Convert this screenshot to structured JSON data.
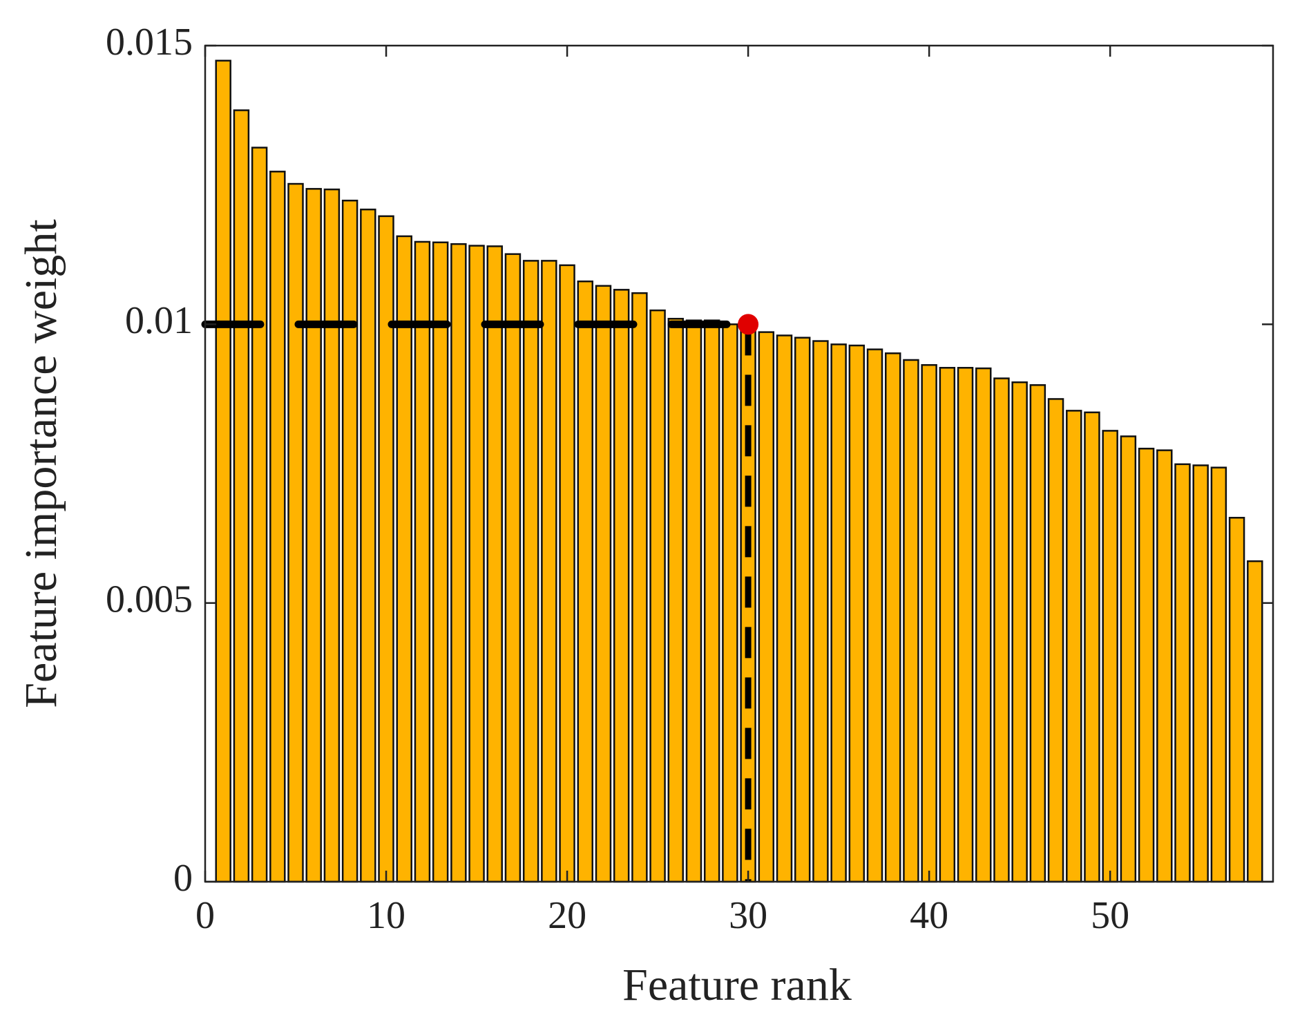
{
  "chart_data": {
    "type": "bar",
    "xlabel": "Feature rank",
    "ylabel": "Feature importance weight",
    "x": [
      1,
      2,
      3,
      4,
      5,
      6,
      7,
      8,
      9,
      10,
      11,
      12,
      13,
      14,
      15,
      16,
      17,
      18,
      19,
      20,
      21,
      22,
      23,
      24,
      25,
      26,
      27,
      28,
      29,
      30,
      31,
      32,
      33,
      34,
      35,
      36,
      37,
      38,
      39,
      40,
      41,
      42,
      43,
      44,
      45,
      46,
      47,
      48,
      49,
      50,
      51,
      52,
      53,
      54,
      55,
      56,
      57,
      58
    ],
    "values": [
      0.01473,
      0.01384,
      0.01317,
      0.01274,
      0.01252,
      0.01243,
      0.01242,
      0.01222,
      0.01206,
      0.01194,
      0.01158,
      0.01148,
      0.01147,
      0.01144,
      0.01141,
      0.0114,
      0.01126,
      0.01114,
      0.01114,
      0.01106,
      0.01077,
      0.01069,
      0.01062,
      0.01056,
      0.01025,
      0.0101,
      0.01007,
      0.01007,
      0.01,
      0.00995,
      0.00986,
      0.0098,
      0.00976,
      0.0097,
      0.00964,
      0.00962,
      0.00955,
      0.00948,
      0.00936,
      0.00927,
      0.00922,
      0.00922,
      0.00921,
      0.00903,
      0.00896,
      0.00891,
      0.00866,
      0.00845,
      0.00842,
      0.00809,
      0.00799,
      0.00777,
      0.00774,
      0.00749,
      0.00747,
      0.00743,
      0.00653,
      0.00575
    ],
    "color": "#ffb300",
    "marker": {
      "x": 30,
      "y": 0.01,
      "color": "#e00000"
    },
    "xlim": [
      0,
      59
    ],
    "xticks": [
      0,
      10,
      20,
      30,
      40,
      50
    ],
    "ylim": [
      0,
      0.015
    ],
    "yticks": [
      0,
      0.005,
      0.01,
      0.015
    ]
  }
}
